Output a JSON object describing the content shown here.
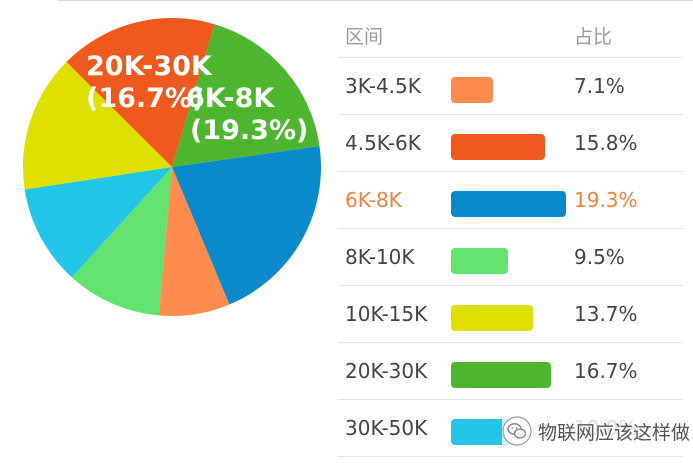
{
  "chart_data": {
    "type": "pie",
    "categories": [
      "3K-4.5K",
      "4.5K-6K",
      "6K-8K",
      "8K-10K",
      "10K-15K",
      "20K-30K",
      "30K-50K"
    ],
    "values": [
      7.1,
      15.8,
      19.3,
      9.5,
      13.7,
      16.7,
      10.0
    ],
    "unit": "%",
    "pie_order": [
      "6K-8K",
      "3K-4.5K",
      "8K-10K",
      "30K-50K",
      "10K-15K",
      "4.5K-6K",
      "20K-30K"
    ],
    "pie_callouts": [
      {
        "range": "20K-30K",
        "pct": "(16.7%)"
      },
      {
        "range": "6K-8K",
        "pct": "(19.3%)"
      }
    ],
    "highlighted": "6K-8K",
    "colors": {
      "3K-4.5K": "#ff8c4d",
      "4.5K-6K": "#ee5a1e",
      "6K-8K": "#0a8acb",
      "8K-10K": "#63e36e",
      "10K-15K": "#e0e000",
      "20K-30K": "#4db52e",
      "30K-50K": "#22c5e6"
    }
  },
  "table": {
    "header_range": "区间",
    "header_pct": "占比",
    "rows": [
      {
        "range": "3K-4.5K",
        "pct": "7.1%",
        "value": 7.1
      },
      {
        "range": "4.5K-6K",
        "pct": "15.8%",
        "value": 15.8
      },
      {
        "range": "6K-8K",
        "pct": "19.3%",
        "value": 19.3
      },
      {
        "range": "8K-10K",
        "pct": "9.5%",
        "value": 9.5
      },
      {
        "range": "10K-15K",
        "pct": "13.7%",
        "value": 13.7
      },
      {
        "range": "20K-30K",
        "pct": "16.7%",
        "value": 16.7
      },
      {
        "range": "30K-50K",
        "pct": "10.0%",
        "value": 10.0
      }
    ]
  },
  "watermark": {
    "text": "物联网应该这样做",
    "icon": "wechat-icon"
  }
}
